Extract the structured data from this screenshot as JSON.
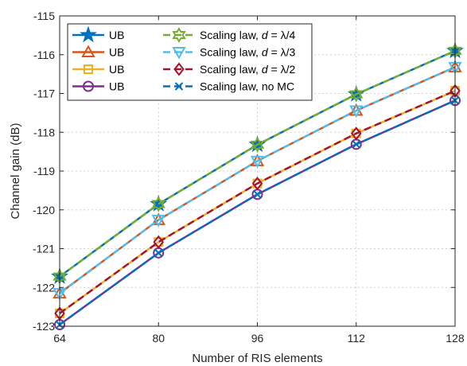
{
  "chart_data": {
    "type": "line",
    "xlabel": "Number of RIS elements",
    "ylabel": "Channel gain (dB)",
    "x": [
      64,
      80,
      96,
      112,
      128
    ],
    "xticks": [
      "64",
      "80",
      "96",
      "112",
      "128"
    ],
    "xlim": [
      64,
      128
    ],
    "ylim": [
      -123,
      -115
    ],
    "yticks": [
      "-123",
      "-122",
      "-121",
      "-120",
      "-119",
      "-118",
      "-117",
      "-116",
      "-115"
    ],
    "grid": true,
    "legend_position": "top-left",
    "series": [
      {
        "name": "UB",
        "color": "#0072BD",
        "marker": "star",
        "dash": "solid",
        "values": [
          -121.72,
          -119.85,
          -118.32,
          -117.02,
          -115.9
        ]
      },
      {
        "name": "UB",
        "color": "#D95319",
        "marker": "triangle-up",
        "dash": "solid",
        "values": [
          -122.15,
          -120.26,
          -118.74,
          -117.44,
          -116.32
        ]
      },
      {
        "name": "UB",
        "color": "#EDB120",
        "marker": "square",
        "dash": "solid",
        "values": [
          -122.67,
          -120.83,
          -119.32,
          -118.03,
          -116.93
        ]
      },
      {
        "name": "UB",
        "color": "#7E2F8E",
        "marker": "circle",
        "dash": "solid",
        "values": [
          -122.96,
          -121.11,
          -119.6,
          -118.31,
          -117.18
        ]
      },
      {
        "name_parts": [
          "Scaling law, ",
          "d",
          " = ",
          "λ/4"
        ],
        "color": "#77AC30",
        "marker": "hexagram",
        "dash": "dashed",
        "values": [
          -121.72,
          -119.85,
          -118.32,
          -117.02,
          -115.9
        ]
      },
      {
        "name_parts": [
          "Scaling law, ",
          "d",
          " = ",
          "λ/3"
        ],
        "color": "#4DBEEE",
        "marker": "triangle-down",
        "dash": "dashed",
        "values": [
          -122.15,
          -120.26,
          -118.74,
          -117.44,
          -116.32
        ]
      },
      {
        "name_parts": [
          "Scaling law, ",
          "d",
          " = ",
          "λ/2"
        ],
        "color": "#A2142F",
        "marker": "diamond",
        "dash": "dashed",
        "values": [
          -122.67,
          -120.83,
          -119.32,
          -118.03,
          -116.93
        ]
      },
      {
        "name": "Scaling law, no MC",
        "color": "#0072BD",
        "marker": "x",
        "dash": "dashed",
        "values": [
          -122.96,
          -121.11,
          -119.6,
          -118.31,
          -117.18
        ]
      }
    ]
  }
}
